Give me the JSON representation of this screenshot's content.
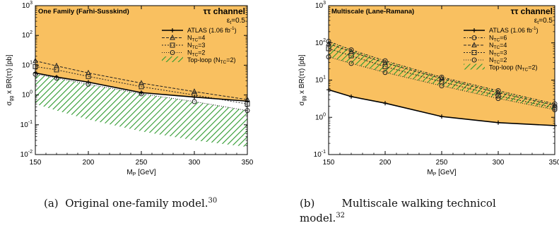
{
  "captions": {
    "a": {
      "prefix": "(a)",
      "text": "Original one-family model.",
      "ref": "30"
    },
    "b": {
      "prefix": "(b)",
      "line1": "Multiscale walking technicol",
      "line2": "model.",
      "ref": "32"
    }
  },
  "colors": {
    "excluded_fill": "#f9c060",
    "hatch": "#2e9a2e",
    "atlas": "#000000",
    "model_lines": "#222222"
  },
  "chart_data": [
    {
      "type": "line",
      "title": "One Family (Farhi-Susskind)",
      "channel": "ττ channel",
      "epsilon": "ε",
      "epsilon_sub": "t",
      "epsilon_value": "=0.5",
      "xlabel": "M",
      "xlabel_sub": "P",
      "xlabel_unit": " [GeV]",
      "ylabel": "σ",
      "ylabel_sub": "gg",
      "ylabel_rest": " x BR(ττ) [pb]",
      "log_y": true,
      "xlim": [
        150,
        350
      ],
      "ylim": [
        0.01,
        1000
      ],
      "x_ticks": [
        150,
        200,
        250,
        300,
        350
      ],
      "x_tick_labels": [
        "150",
        "200",
        "250",
        "300",
        "350"
      ],
      "y_ticks": [
        0.01,
        0.1,
        1,
        10,
        100,
        1000
      ],
      "y_tick_labels": [
        {
          "base": "10",
          "exp": "-2"
        },
        {
          "base": "10",
          "exp": "-1"
        },
        {
          "base": "10",
          "exp": "0"
        },
        {
          "base": "10",
          "exp": "1"
        },
        {
          "base": "10",
          "exp": "2"
        },
        {
          "base": "10",
          "exp": "3"
        }
      ],
      "legend_position": "top-right",
      "x": [
        150,
        170,
        200,
        250,
        300,
        350
      ],
      "atlas": {
        "label": "ATLAS (1.06 fb",
        "label_sup": "-1",
        "label_end": ")",
        "values": [
          5.5,
          4.0,
          2.7,
          1.2,
          0.85,
          0.62
        ]
      },
      "series": [
        {
          "label_base": "N",
          "label_sub": "TC",
          "label_rest": "=4",
          "marker": "triangle",
          "dash": "4,2",
          "values": [
            14,
            9.5,
            5.5,
            2.5,
            1.3,
            0.7
          ]
        },
        {
          "label_base": "N",
          "label_sub": "TC",
          "label_rest": "=3",
          "marker": "square",
          "dash": "2,2",
          "values": [
            9,
            7,
            4.2,
            1.9,
            1.0,
            0.5
          ]
        },
        {
          "label_base": "N",
          "label_sub": "TC",
          "label_rest": "=2",
          "marker": "circle",
          "dash": "1,2",
          "values": [
            5,
            3.7,
            2.3,
            1.1,
            0.6,
            0.3
          ]
        }
      ],
      "top_loop": {
        "label_base": "Top-loop (N",
        "label_sub": "TC",
        "label_rest": "=2)",
        "upper": [
          5,
          3.7,
          2.3,
          1.1,
          0.6,
          0.3
        ],
        "lower": [
          0.5,
          0.3,
          0.15,
          0.06,
          0.03,
          0.018
        ]
      },
      "excluded_above": true
    },
    {
      "type": "line",
      "title": "Multiscale (Lane-Ramana)",
      "channel": "ττ channel",
      "epsilon": "ε",
      "epsilon_sub": "t",
      "epsilon_value": "=0.5",
      "xlabel": "M",
      "xlabel_sub": "P",
      "xlabel_unit": " [GeV]",
      "ylabel": "σ",
      "ylabel_sub": "gg",
      "ylabel_rest": " x BR(ττ) [pb]",
      "log_y": true,
      "xlim": [
        150,
        350
      ],
      "ylim": [
        0.1,
        1000
      ],
      "x_ticks": [
        150,
        200,
        250,
        300,
        350
      ],
      "x_tick_labels": [
        "150",
        "200",
        "250",
        "300",
        "350"
      ],
      "y_ticks": [
        0.1,
        1,
        10,
        100,
        1000
      ],
      "y_tick_labels": [
        {
          "base": "10",
          "exp": "-1"
        },
        {
          "base": "10",
          "exp": "0"
        },
        {
          "base": "10",
          "exp": "1"
        },
        {
          "base": "10",
          "exp": "2"
        },
        {
          "base": "10",
          "exp": "3"
        }
      ],
      "legend_position": "top-right",
      "x": [
        150,
        170,
        200,
        250,
        300,
        350
      ],
      "atlas": {
        "label": "ATLAS (1.06 fb",
        "label_sup": "-1",
        "label_end": ")",
        "values": [
          5.5,
          3.6,
          2.4,
          1.05,
          0.72,
          0.6
        ]
      },
      "series": [
        {
          "label_base": "N",
          "label_sub": "TC",
          "label_rest": "=6",
          "marker": "circle",
          "dash": "3,2,1,2",
          "values": [
            110,
            65,
            33,
            12,
            5.2,
            2.3
          ]
        },
        {
          "label_base": "N",
          "label_sub": "TC",
          "label_rest": "=4",
          "marker": "triangle",
          "dash": "4,2",
          "values": [
            95,
            58,
            29,
            11,
            4.6,
            2.1
          ]
        },
        {
          "label_base": "N",
          "label_sub": "TC",
          "label_rest": "=3",
          "marker": "square",
          "dash": "2,2",
          "values": [
            70,
            45,
            23,
            9,
            3.8,
            1.8
          ]
        },
        {
          "label_base": "N",
          "label_sub": "TC",
          "label_rest": "=2",
          "marker": "circle",
          "dash": "1,2",
          "values": [
            42,
            28,
            16,
            7,
            3.2,
            1.6
          ]
        }
      ],
      "top_loop": {
        "label_base": "Top-loop (N",
        "label_sub": "TC",
        "label_rest": "=2)",
        "upper": [
          110,
          65,
          33,
          12,
          5.2,
          2.3
        ],
        "lower": [
          42,
          28,
          16,
          7,
          3.2,
          1.6
        ]
      },
      "excluded_above": true
    }
  ]
}
